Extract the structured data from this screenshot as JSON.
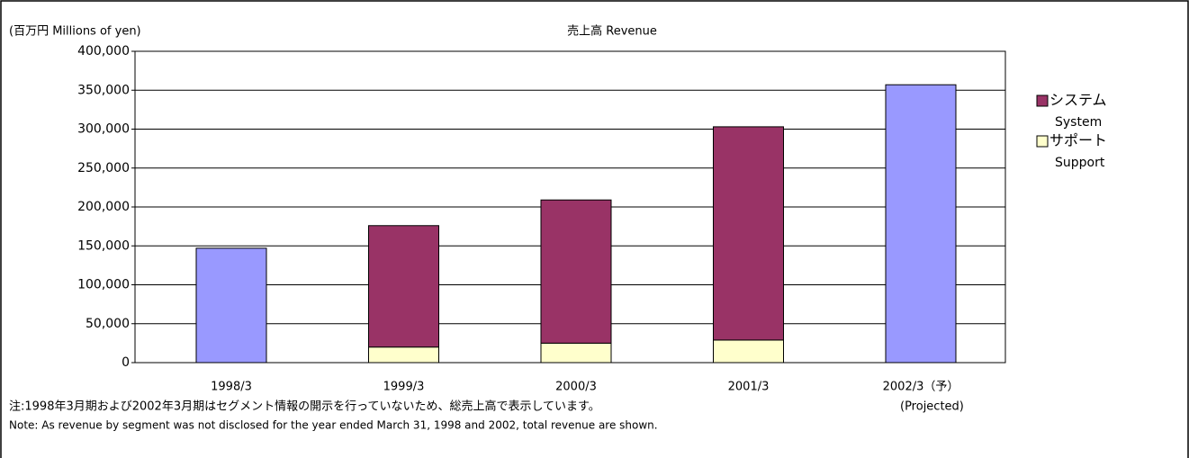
{
  "chart_data": {
    "type": "stacked_bar",
    "title": "売上高  Revenue",
    "y_label": "(百万円  Millions of yen)",
    "categories": [
      "1998/3",
      "1999/3",
      "2000/3",
      "2001/3",
      "2002/3（予）"
    ],
    "projected_label": "(Projected)",
    "series": [
      {
        "name": "サポート",
        "name_en": "Support",
        "color": "#ffffcc",
        "values": [
          null,
          20000,
          25000,
          29000,
          null
        ]
      },
      {
        "name": "システム",
        "name_en": "System",
        "color": "#993366",
        "values": [
          null,
          156000,
          184000,
          274000,
          null
        ]
      },
      {
        "color": "#9999ff",
        "values": [
          147000,
          null,
          null,
          null,
          357000
        ]
      }
    ],
    "ylim": [
      0,
      400000
    ],
    "yticks": [
      0,
      {
        "value": 50000,
        "label": "50,000"
      },
      {
        "value": 100000,
        "label": "100,000"
      },
      {
        "value": 150000,
        "label": "150,000"
      },
      {
        "value": 200000,
        "label": "200,000"
      },
      {
        "value": 250000,
        "label": "250,000"
      },
      {
        "value": 300000,
        "label": "300,000"
      },
      {
        "value": 350000,
        "label": "350,000"
      },
      {
        "value": 400000,
        "label": "400,000"
      }
    ],
    "grid": true,
    "notes": [
      "注:1998年3月期および2002年3月期はセグメント情報の開示を行っていないため、総売上高で表示しています。",
      "Note: As revenue by segment was not disclosed for the year ended March 31, 1998 and 2002, total revenue are shown."
    ]
  }
}
